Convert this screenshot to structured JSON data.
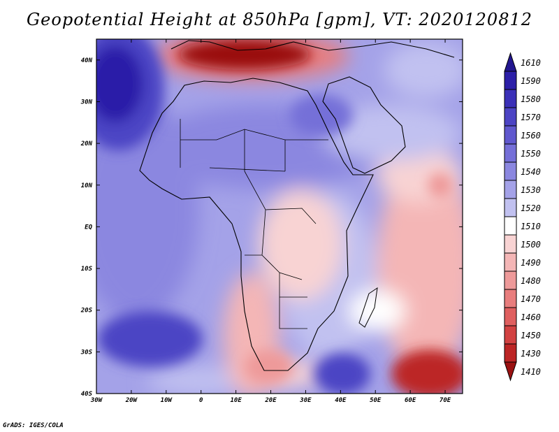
{
  "title": "Geopotential Height at 850hPa [gpm], VT: 2020120812",
  "credit": "GrADS: IGES/COLA",
  "map": {
    "variable": "Geopotential Height at 850hPa",
    "units": "gpm",
    "valid_time": "2020120812",
    "lon_range": [
      -30,
      75
    ],
    "lat_range": [
      -40,
      45
    ],
    "lon_ticks": [
      "30W",
      "20W",
      "10W",
      "0",
      "10E",
      "20E",
      "30E",
      "40E",
      "50E",
      "60E",
      "70E"
    ],
    "lat_ticks": [
      "40N",
      "30N",
      "20N",
      "10N",
      "EQ",
      "10S",
      "20S",
      "30S",
      "40S"
    ]
  },
  "colorbar": {
    "levels": [
      "1610",
      "1590",
      "1580",
      "1570",
      "1560",
      "1550",
      "1540",
      "1530",
      "1520",
      "1510",
      "1500",
      "1490",
      "1480",
      "1470",
      "1460",
      "1450",
      "1430",
      "1410"
    ],
    "colors": [
      "#22168f",
      "#2c1fa8",
      "#3b30b8",
      "#4c44c4",
      "#6058ce",
      "#756fd8",
      "#8b87e0",
      "#a4a2e8",
      "#c1c1f0",
      "#ffffff",
      "#f8d3d3",
      "#f4b6b6",
      "#ee9a9a",
      "#e87d7d",
      "#df5f5f",
      "#d24242",
      "#bc2525",
      "#9a1111"
    ]
  },
  "fields": {
    "high_centers": [
      {
        "name": "azores-high",
        "lon": -28,
        "lat": 32,
        "color": "#2c1fa8"
      },
      {
        "name": "south-atlantic-high",
        "lon": -17,
        "lat": -28,
        "color": "#3b30b8"
      },
      {
        "name": "mascarene-region-high",
        "lon": 40,
        "lat": -36,
        "color": "#3b30b8"
      },
      {
        "name": "sahara-high",
        "lon": 20,
        "lat": 22,
        "color": "#756fd8"
      },
      {
        "name": "arabia-high",
        "lon": 45,
        "lat": 27,
        "color": "#756fd8"
      }
    ],
    "low_centers": [
      {
        "name": "mediterranean-low",
        "lon": 14,
        "lat": 41,
        "color": "#9a1111"
      },
      {
        "name": "indian-ocean-low",
        "lon": 67,
        "lat": -36,
        "color": "#bc2525"
      },
      {
        "name": "southern-africa-low",
        "lon": 20,
        "lat": -30,
        "color": "#ee9a9a"
      },
      {
        "name": "congo-low",
        "lon": 30,
        "lat": -3,
        "color": "#f8d3d3"
      },
      {
        "name": "arabian-sea-low",
        "lon": 67,
        "lat": 10,
        "color": "#f4b6b6"
      }
    ]
  }
}
